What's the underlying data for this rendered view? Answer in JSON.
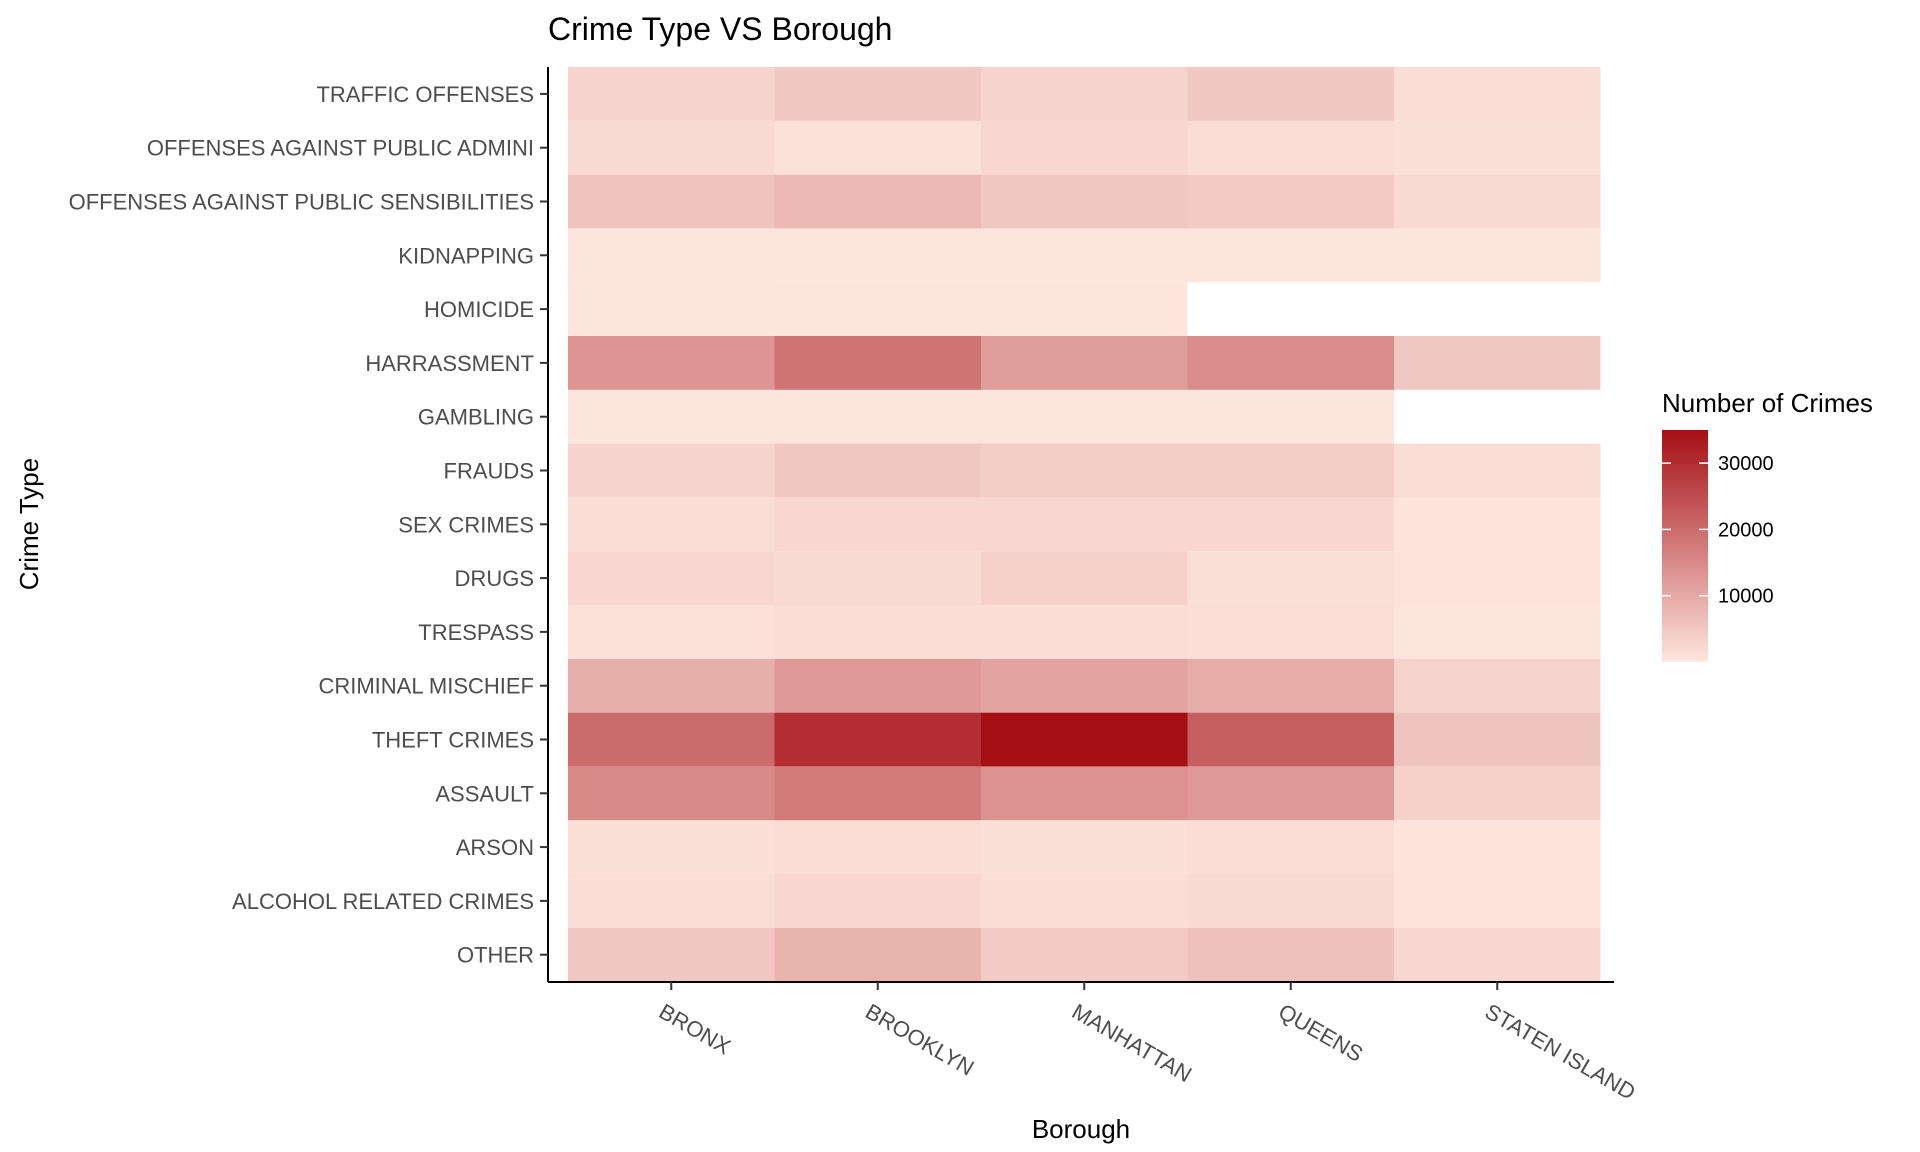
{
  "chart_data": {
    "type": "heatmap",
    "title": "Crime Type VS Borough",
    "xlabel": "Borough",
    "ylabel": "Crime Type",
    "x_categories": [
      "BRONX",
      "BROOKLYN",
      "MANHATTAN",
      "QUEENS",
      "STATEN ISLAND"
    ],
    "y_categories": [
      "OTHER",
      "ALCOHOL RELATED CRIMES",
      "ARSON",
      "ASSAULT",
      "THEFT CRIMES",
      "CRIMINAL MISCHIEF",
      "TRESPASS",
      "DRUGS",
      "SEX CRIMES",
      "FRAUDS",
      "GAMBLING",
      "HARRASSMENT",
      "HOMICIDE",
      "KIDNAPPING",
      "OFFENSES AGAINST PUBLIC SENSIBILITIES",
      "OFFENSES AGAINST PUBLIC ADMINI",
      "TRAFFIC OFFENSES"
    ],
    "values": [
      [
        5000,
        8500,
        4500,
        6000,
        2500
      ],
      [
        1500,
        2500,
        1500,
        2000,
        500
      ],
      [
        1000,
        1500,
        1000,
        1500,
        500
      ],
      [
        15000,
        17500,
        13500,
        12500,
        3500
      ],
      [
        20000,
        30000,
        35000,
        22000,
        5500
      ],
      [
        9000,
        12500,
        11000,
        9500,
        3000
      ],
      [
        800,
        1500,
        1500,
        1200,
        400
      ],
      [
        2500,
        2000,
        3500,
        1000,
        500
      ],
      [
        1500,
        2500,
        2500,
        2500,
        500
      ],
      [
        3000,
        5000,
        4000,
        4000,
        1500
      ],
      [
        200,
        300,
        300,
        300,
        null
      ],
      [
        13000,
        18500,
        12000,
        14500,
        5000
      ],
      [
        100,
        200,
        200,
        null,
        null
      ],
      [
        100,
        100,
        100,
        100,
        50
      ],
      [
        5500,
        7500,
        5000,
        4500,
        2000
      ],
      [
        2000,
        800,
        2500,
        1500,
        1000
      ],
      [
        3000,
        5000,
        3000,
        5000,
        1500
      ]
    ],
    "legend": {
      "title": "Number of Crimes",
      "ticks": [
        10000,
        20000,
        30000
      ],
      "tick_labels": [
        "10000",
        "20000",
        "30000"
      ],
      "range": [
        0,
        35000
      ],
      "placement": "right",
      "color_low": "#fee6de",
      "color_high": "#a50f15"
    },
    "grid": false
  }
}
